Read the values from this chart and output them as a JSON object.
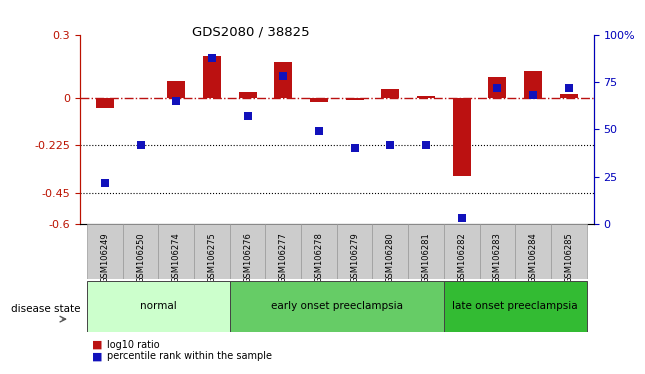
{
  "title": "GDS2080 / 38825",
  "samples": [
    "GSM106249",
    "GSM106250",
    "GSM106274",
    "GSM106275",
    "GSM106276",
    "GSM106277",
    "GSM106278",
    "GSM106279",
    "GSM106280",
    "GSM106281",
    "GSM106282",
    "GSM106283",
    "GSM106284",
    "GSM106285"
  ],
  "log10_ratio": [
    -0.05,
    0.0,
    0.08,
    0.2,
    0.03,
    0.17,
    -0.02,
    -0.01,
    0.04,
    0.01,
    -0.37,
    0.1,
    0.13,
    0.02
  ],
  "percentile_rank": [
    22,
    42,
    65,
    88,
    57,
    78,
    49,
    40,
    42,
    42,
    3,
    72,
    68,
    72
  ],
  "ylim_left": [
    -0.6,
    0.3
  ],
  "ylim_right": [
    0,
    100
  ],
  "yticks_left": [
    0.3,
    0.0,
    -0.225,
    -0.45,
    -0.6
  ],
  "yticks_left_labels": [
    "0.3",
    "0",
    "-0.225",
    "-0.45",
    "-0.6"
  ],
  "yticks_right": [
    100,
    75,
    50,
    25,
    0
  ],
  "yticks_right_labels": [
    "100%",
    "75",
    "50",
    "25",
    "0"
  ],
  "dotted_lines": [
    -0.225,
    -0.45
  ],
  "groups": [
    {
      "label": "normal",
      "start": 0,
      "end": 3,
      "color": "#ccffcc"
    },
    {
      "label": "early onset preeclampsia",
      "start": 4,
      "end": 9,
      "color": "#66cc66"
    },
    {
      "label": "late onset preeclampsia",
      "start": 10,
      "end": 13,
      "color": "#33bb33"
    }
  ],
  "bar_color_red": "#bb1111",
  "bar_color_blue": "#1111bb",
  "bar_width": 0.5,
  "marker_size": 36,
  "legend_items": [
    {
      "label": "log10 ratio",
      "color": "#bb1111"
    },
    {
      "label": "percentile rank within the sample",
      "color": "#1111bb"
    }
  ],
  "disease_state_label": "disease state",
  "right_axis_color": "#0000bb",
  "left_axis_color": "#bb1100",
  "samplebox_color": "#cccccc",
  "samplebox_edge": "#999999"
}
